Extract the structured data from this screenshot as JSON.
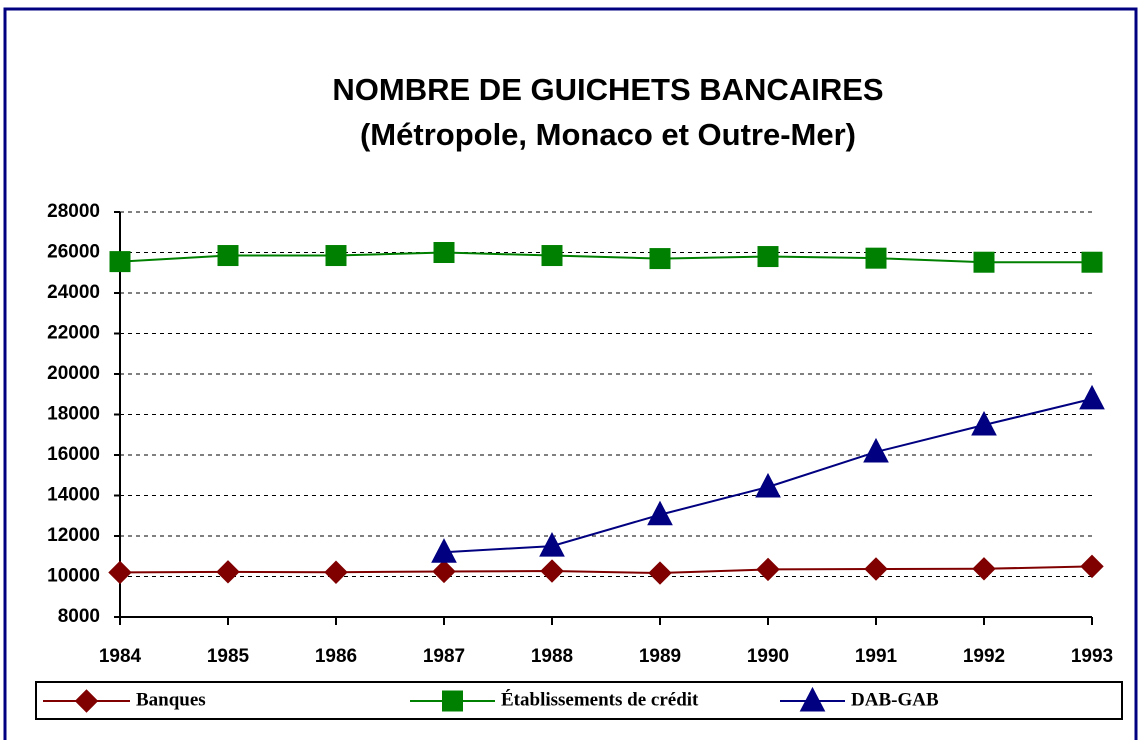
{
  "chart_data": {
    "type": "line",
    "title": "NOMBRE DE GUICHETS BANCAIRES",
    "subtitle": "(Métropole, Monaco et Outre-Mer)",
    "categories": [
      "1984",
      "1985",
      "1986",
      "1987",
      "1988",
      "1989",
      "1990",
      "1991",
      "1992",
      "1993"
    ],
    "series": [
      {
        "name": "Banques",
        "color": "#800000",
        "marker": "diamond",
        "values": [
          10200,
          10230,
          10210,
          10250,
          10270,
          10170,
          10350,
          10370,
          10380,
          10500
        ]
      },
      {
        "name": "Établissements de crédit",
        "color": "#008000",
        "marker": "square",
        "values": [
          25550,
          25850,
          25850,
          26000,
          25850,
          25700,
          25800,
          25720,
          25520,
          25520
        ]
      },
      {
        "name": "DAB-GAB",
        "color": "#000080",
        "marker": "triangle",
        "values": [
          null,
          null,
          null,
          11200,
          11500,
          13050,
          14420,
          16150,
          17480,
          18770
        ]
      }
    ],
    "ylim": [
      8000,
      28000
    ],
    "yticks": [
      8000,
      10000,
      12000,
      14000,
      16000,
      18000,
      20000,
      22000,
      24000,
      26000,
      28000
    ],
    "grid": true
  }
}
